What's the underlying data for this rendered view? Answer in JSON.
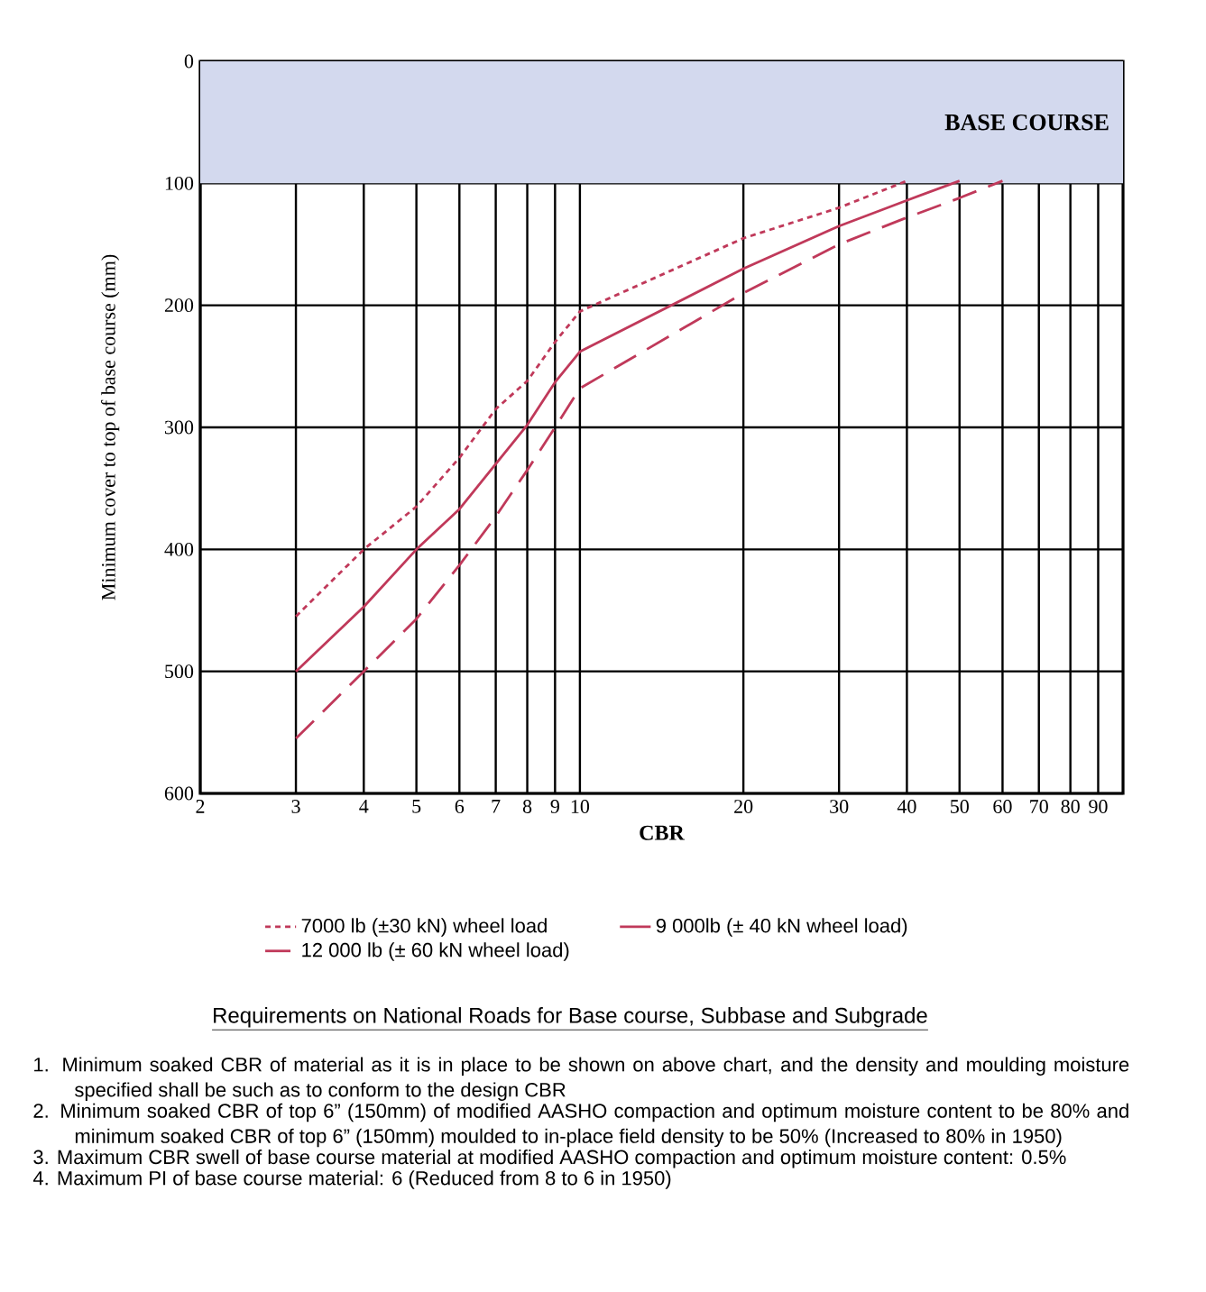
{
  "chart_data": {
    "type": "line",
    "xlabel": "CBR",
    "ylabel": "Minimum cover to top of base course (mm)",
    "log": "x",
    "xlim": [
      2,
      100
    ],
    "xticks": [
      2,
      3,
      4,
      5,
      6,
      7,
      8,
      9,
      10,
      20,
      30,
      40,
      50,
      60,
      70,
      80,
      90
    ],
    "ylim": [
      600,
      0
    ],
    "yticks": [
      0,
      100,
      200,
      300,
      400,
      500,
      600
    ],
    "grid": true,
    "legend": "bottom",
    "bands": [
      {
        "axis": "y",
        "from": 0,
        "to": 100,
        "label": "BASE COURSE",
        "color": "#d3d9ee"
      }
    ],
    "series": [
      {
        "name": "7000 lb (±30 kN) wheel load",
        "color": "#c0395a",
        "line_style": "dotted",
        "x": [
          3,
          4,
          5,
          6,
          7,
          8,
          9,
          10,
          20,
          30,
          40
        ],
        "values": [
          455,
          400,
          365,
          325,
          285,
          262,
          230,
          205,
          145,
          120,
          98
        ]
      },
      {
        "name": "9 000lb (± 40 kN wheel load)",
        "color": "#c0395a",
        "line_style": "solid",
        "x": [
          3,
          4,
          5,
          6,
          7,
          8,
          9,
          10,
          20,
          30,
          40,
          50
        ],
        "values": [
          500,
          447,
          400,
          367,
          330,
          298,
          263,
          238,
          170,
          135,
          114,
          98
        ]
      },
      {
        "name": "12 000 lb (± 60 kN wheel load)",
        "color": "#c0395a",
        "line_style": "dashed",
        "x": [
          3,
          4,
          5,
          6,
          7,
          8,
          9,
          10,
          20,
          30,
          40,
          50,
          60
        ],
        "values": [
          555,
          500,
          457,
          413,
          373,
          335,
          300,
          268,
          190,
          150,
          128,
          112,
          98
        ]
      }
    ],
    "annotations": [
      "Requirements on National Roads for Base course, Subbase and Subgrade",
      "1.\tMinimum soaked CBR of material as it is in place to be shown on above chart, and the density and moulding moisture specified shall be such as to conform to the design CBR",
      "2.\tMinimum soaked CBR of top 6” (150mm) of modified AASHO compaction and optimum moisture content to be 80% and minimum soaked CBR of top 6” (150mm) moulded to in-place field density to be 50% (Increased to 80% in 1950)",
      "3.\tMaximum CBR swell of base course material at modified AASHO compaction and optimum moisture content: 0.5%",
      "4.\tMaximum PI of base course material: 6 (Reduced from 8 to 6 in 1950)"
    ]
  }
}
